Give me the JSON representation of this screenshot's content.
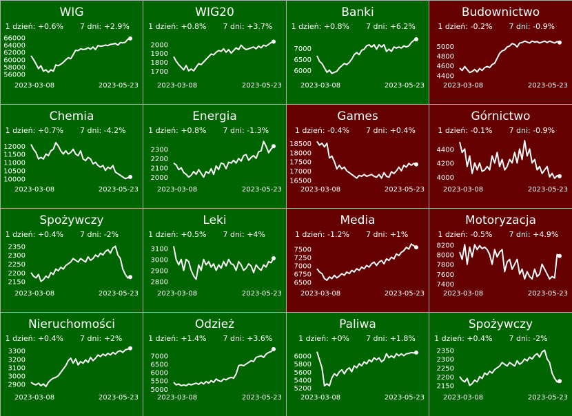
{
  "colors": {
    "up": "#006400",
    "down": "#640000",
    "line": "#ffffff",
    "border": "#b0b0b0"
  },
  "chart_data": [
    {
      "type": "line",
      "title": "WIG",
      "change_1d": "1 dzień: +0.6%",
      "change_7d": "7 dni: +2.9%",
      "trend": "up",
      "x_start": "2023-03-08",
      "x_end": "2023-05-23",
      "ylim": [
        55000,
        67000
      ],
      "yticks": [
        56000,
        58000,
        60000,
        62000,
        64000,
        66000
      ],
      "values": [
        61000,
        60000,
        58800,
        57500,
        58300,
        56800,
        57200,
        56500,
        57200,
        56800,
        58500,
        58300,
        58700,
        59200,
        59900,
        60500,
        60200,
        61300,
        62500,
        62400,
        62900,
        62700,
        62800,
        63200,
        62800,
        63400,
        62700,
        63800,
        63600,
        63700,
        63900,
        63800,
        64100,
        64200,
        64400,
        63900,
        64600,
        64500,
        64700,
        65500,
        65700
      ]
    },
    {
      "type": "line",
      "title": "WIG20",
      "change_1d": "1 dzień: +0.8%",
      "change_7d": "7 dni: +3.7%",
      "trend": "up",
      "x_start": "2023-03-08",
      "x_end": "2023-05-23",
      "ylim": [
        1620,
        2120
      ],
      "yticks": [
        1700,
        1800,
        1900,
        2000
      ],
      "values": [
        1860,
        1810,
        1770,
        1740,
        1710,
        1760,
        1700,
        1720,
        1700,
        1740,
        1780,
        1770,
        1800,
        1830,
        1860,
        1890,
        1880,
        1910,
        1930,
        1920,
        1950,
        1910,
        1940,
        1900,
        1930,
        1960,
        1940,
        1990,
        1960,
        1940,
        1950,
        1960,
        1970,
        1950,
        1980,
        1960,
        1990,
        1980,
        2000,
        2020,
        2030
      ]
    },
    {
      "type": "line",
      "title": "Banki",
      "change_1d": "1 dzień: +0.8%",
      "change_7d": "7 dni: +6.2%",
      "trend": "up",
      "x_start": "2023-03-08",
      "x_end": "2023-05-23",
      "ylim": [
        5650,
        7650
      ],
      "yticks": [
        6000,
        6500,
        7000
      ],
      "values": [
        6650,
        6400,
        6300,
        6100,
        5900,
        6000,
        5850,
        5900,
        5950,
        6100,
        6200,
        6300,
        6250,
        6350,
        6500,
        6700,
        6800,
        6700,
        6900,
        6950,
        7100,
        7150,
        7050,
        7150,
        6950,
        7150,
        7050,
        7150,
        6850,
        6950,
        6850,
        7050,
        7000,
        7050,
        7000,
        7100,
        7050,
        7100,
        7250,
        7350,
        7400
      ]
    },
    {
      "type": "line",
      "title": "Budownictwo",
      "change_1d": "1 dzień: -0.2%",
      "change_7d": "7 dni: -0.9%",
      "trend": "down",
      "x_start": "2023-03-08",
      "x_end": "2023-05-23",
      "ylim": [
        4350,
        5250
      ],
      "yticks": [
        4400,
        4600,
        4800,
        5000
      ],
      "values": [
        4550,
        4500,
        4580,
        4520,
        4460,
        4480,
        4520,
        4470,
        4540,
        4500,
        4560,
        4580,
        4560,
        4620,
        4650,
        4750,
        4850,
        4900,
        4920,
        4980,
        5000,
        5050,
        5030,
        4980,
        5060,
        5070,
        5100,
        5080,
        5060,
        5100,
        5080,
        5090,
        5060,
        5080,
        5100,
        5070,
        5100,
        5080,
        5060,
        5090,
        5070
      ]
    },
    {
      "type": "line",
      "title": "Chemia",
      "change_1d": "1 dzień: +0.7%",
      "change_7d": "7 dni: -4.2%",
      "trend": "up",
      "x_start": "2023-03-08",
      "x_end": "2023-05-23",
      "ylim": [
        9800,
        12500
      ],
      "yticks": [
        10000,
        10500,
        11000,
        11500,
        12000
      ],
      "values": [
        12100,
        11800,
        11600,
        11200,
        11300,
        11200,
        11500,
        11400,
        11700,
        11800,
        12200,
        12000,
        11700,
        11500,
        11700,
        11500,
        11600,
        11800,
        11500,
        11400,
        11700,
        11200,
        11100,
        11300,
        11200,
        10900,
        11000,
        10800,
        10700,
        10800,
        10500,
        10700,
        10600,
        10800,
        10400,
        10300,
        10200,
        10100,
        10000,
        10050,
        10100
      ]
    },
    {
      "type": "line",
      "title": "Energia",
      "change_1d": "1 dzień: +0.8%",
      "change_7d": "7 dni: -1.3%",
      "trend": "up",
      "x_start": "2023-03-08",
      "x_end": "2023-05-23",
      "ylim": [
        1950,
        2420
      ],
      "yticks": [
        2000,
        2100,
        2200,
        2300
      ],
      "values": [
        2150,
        2130,
        2080,
        2100,
        2050,
        2030,
        2000,
        2020,
        2060,
        2030,
        2080,
        2040,
        2000,
        2060,
        2040,
        2090,
        2030,
        2120,
        2080,
        2150,
        2140,
        2090,
        2160,
        2150,
        2180,
        2150,
        2200,
        2170,
        2230,
        2240,
        2180,
        2210,
        2230,
        2200,
        2270,
        2280,
        2380,
        2330,
        2260,
        2300,
        2330
      ]
    },
    {
      "type": "line",
      "title": "Games",
      "change_1d": "1 dzień: -0.4%",
      "change_7d": "7 dni: +0.4%",
      "trend": "down",
      "x_start": "2023-03-08",
      "x_end": "2023-05-23",
      "ylim": [
        16400,
        18800
      ],
      "yticks": [
        16500,
        17000,
        17500,
        18000,
        18500
      ],
      "values": [
        18600,
        18400,
        18500,
        18300,
        18500,
        17700,
        17800,
        17500,
        17100,
        17300,
        17100,
        17200,
        17000,
        16900,
        16800,
        16700,
        16600,
        16750,
        16700,
        16800,
        16700,
        16750,
        16800,
        16700,
        16650,
        16800,
        16600,
        16900,
        16700,
        16650,
        16950,
        16850,
        17000,
        17200,
        17000,
        17300,
        17200,
        17400,
        17300,
        17400,
        17350
      ]
    },
    {
      "type": "line",
      "title": "Górnictwo",
      "change_1d": "1 dzień: -0.1%",
      "change_7d": "7 dni: -0.9%",
      "trend": "down",
      "x_start": "2023-03-08",
      "x_end": "2023-05-23",
      "ylim": [
        3930,
        4560
      ],
      "yticks": [
        4000,
        4200,
        4400
      ],
      "values": [
        4500,
        4350,
        4400,
        4150,
        4300,
        4050,
        4200,
        4100,
        4200,
        4080,
        4100,
        4150,
        4100,
        4300,
        4200,
        4350,
        4150,
        4250,
        4100,
        4150,
        4250,
        4200,
        4350,
        4200,
        4400,
        4250,
        4520,
        4300,
        4400,
        4200,
        4250,
        4100,
        4150,
        4050,
        4100,
        4150,
        4000,
        4050,
        3980,
        4020,
        4010
      ]
    },
    {
      "type": "line",
      "title": "Spożywczy",
      "change_1d": "1 dzień: +0.4%",
      "change_7d": "7 dni: -2%",
      "trend": "up",
      "x_start": "2023-03-08",
      "x_end": "2023-05-23",
      "ylim": [
        2125,
        2375
      ],
      "yticks": [
        2150,
        2200,
        2250,
        2300,
        2350
      ],
      "values": [
        2200,
        2180,
        2170,
        2190,
        2150,
        2160,
        2180,
        2170,
        2200,
        2190,
        2220,
        2210,
        2230,
        2220,
        2240,
        2250,
        2260,
        2280,
        2270,
        2260,
        2280,
        2270,
        2260,
        2290,
        2270,
        2280,
        2300,
        2290,
        2310,
        2300,
        2320,
        2330,
        2310,
        2340,
        2350,
        2300,
        2280,
        2220,
        2190,
        2170,
        2175
      ]
    },
    {
      "type": "line",
      "title": "Leki",
      "change_1d": "1 dzień: +0.5%",
      "change_7d": "7 dni: +4%",
      "trend": "up",
      "x_start": "2023-03-08",
      "x_end": "2023-05-23",
      "ylim": [
        2760,
        3160
      ],
      "yticks": [
        2800,
        2900,
        3000,
        3100
      ],
      "values": [
        3120,
        3000,
        2950,
        3000,
        2900,
        3000,
        2980,
        2900,
        2850,
        2820,
        2950,
        2900,
        3000,
        2950,
        2980,
        2930,
        2960,
        2900,
        2950,
        2920,
        2980,
        2940,
        3000,
        2960,
        2950,
        2900,
        2980,
        2950,
        2900,
        2920,
        2960,
        2940,
        2880,
        2950,
        2920,
        2900,
        2950,
        2930,
        2980,
        2970,
        3010
      ]
    },
    {
      "type": "line",
      "title": "Media",
      "change_1d": "1 dzień: -1.2%",
      "change_7d": "7 dni: +1%",
      "trend": "down",
      "x_start": "2023-03-08",
      "x_end": "2023-05-23",
      "ylim": [
        6380,
        7720
      ],
      "yticks": [
        6500,
        6750,
        7000,
        7250,
        7500
      ],
      "values": [
        6900,
        6800,
        6750,
        6600,
        6550,
        6650,
        6600,
        6700,
        6620,
        6680,
        6750,
        6700,
        6800,
        6750,
        6850,
        6800,
        6900,
        6850,
        6950,
        6900,
        7000,
        6950,
        7050,
        7100,
        7000,
        7100,
        7150,
        7050,
        7200,
        7150,
        7250,
        7200,
        7350,
        7300,
        7400,
        7450,
        7550,
        7500,
        7650,
        7600,
        7550
      ]
    },
    {
      "type": "line",
      "title": "Motoryzacja",
      "change_1d": "1 dzień: -0.5%",
      "change_7d": "7 dni: +4.9%",
      "trend": "down",
      "x_start": "2023-03-08",
      "x_end": "2023-05-23",
      "ylim": [
        7360,
        8260
      ],
      "yticks": [
        7400,
        7600,
        7800,
        8000,
        8200
      ],
      "values": [
        8050,
        7900,
        8200,
        7800,
        8150,
        7950,
        8200,
        8100,
        8180,
        8120,
        8150,
        8100,
        8000,
        7800,
        8100,
        7950,
        8050,
        8100,
        7650,
        7850,
        7900,
        7700,
        7800,
        7900,
        7600,
        7700,
        7500,
        7650,
        7550,
        7500,
        7700,
        7550,
        7600,
        7800,
        7700,
        7600,
        7500,
        7550,
        7520,
        8000,
        7970
      ]
    },
    {
      "type": "line",
      "title": "Nieruchomości",
      "change_1d": "1 dzień: +0.4%",
      "change_7d": "7 dni: +2%",
      "trend": "up",
      "x_start": "2023-03-08",
      "x_end": "2023-05-23",
      "ylim": [
        2830,
        3360
      ],
      "yticks": [
        2900,
        3000,
        3100,
        3200,
        3300
      ],
      "values": [
        2920,
        2900,
        2890,
        2910,
        2880,
        2900,
        2870,
        2920,
        2950,
        2970,
        2980,
        3000,
        3040,
        3080,
        3120,
        3180,
        3210,
        3150,
        3200,
        3130,
        3170,
        3150,
        3190,
        3160,
        3220,
        3180,
        3210,
        3250,
        3230,
        3260,
        3240,
        3270,
        3250,
        3280,
        3260,
        3290,
        3300,
        3280,
        3310,
        3320,
        3330
      ]
    },
    {
      "type": "line",
      "title": "Odzież",
      "change_1d": "1 dzień: +1.4%",
      "change_7d": "7 dni: +3.6%",
      "trend": "up",
      "x_start": "2023-03-08",
      "x_end": "2023-05-23",
      "ylim": [
        4950,
        7600
      ],
      "yticks": [
        5000,
        5500,
        6000,
        6500,
        7000
      ],
      "values": [
        5400,
        5250,
        5300,
        5200,
        5250,
        5200,
        5300,
        5250,
        5300,
        5350,
        5280,
        5400,
        5300,
        5450,
        5350,
        5500,
        5400,
        5600,
        5500,
        5450,
        5600,
        5550,
        5650,
        5700,
        5650,
        5900,
        6400,
        6450,
        6400,
        6500,
        6600,
        6700,
        6650,
        6900,
        6950,
        7000,
        6900,
        7100,
        7200,
        7250,
        7400
      ]
    },
    {
      "type": "line",
      "title": "Paliwa",
      "change_1d": "1 dzień: +0%",
      "change_7d": "7 dni: +1.8%",
      "trend": "up",
      "x_start": "2023-03-08",
      "x_end": "2023-05-23",
      "ylim": [
        5150,
        6250
      ],
      "yticks": [
        5200,
        5400,
        5600,
        5800,
        6000
      ],
      "values": [
        6100,
        5900,
        5700,
        5250,
        5300,
        5250,
        5450,
        5550,
        5500,
        5600,
        5650,
        5550,
        5650,
        5700,
        5600,
        5750,
        5700,
        5800,
        5750,
        5850,
        5800,
        5900,
        5850,
        5950,
        5900,
        5950,
        5850,
        5900,
        6050,
        5950,
        6000,
        5950,
        6050,
        6000,
        6050,
        6000,
        6050,
        6060,
        6080,
        6070,
        6080
      ]
    },
    {
      "type": "line",
      "title": "Spożywczy",
      "change_1d": "1 dzień: +0.4%",
      "change_7d": "7 dni: -2%",
      "trend": "up",
      "x_start": "2023-03-08",
      "x_end": "2023-05-23",
      "ylim": [
        2125,
        2375
      ],
      "yticks": [
        2150,
        2200,
        2250,
        2300,
        2350
      ],
      "values": [
        2200,
        2180,
        2170,
        2190,
        2150,
        2160,
        2180,
        2170,
        2200,
        2190,
        2220,
        2210,
        2230,
        2220,
        2240,
        2250,
        2260,
        2280,
        2270,
        2260,
        2280,
        2270,
        2260,
        2290,
        2270,
        2280,
        2300,
        2290,
        2310,
        2300,
        2320,
        2330,
        2310,
        2340,
        2350,
        2300,
        2280,
        2220,
        2190,
        2170,
        2175
      ]
    }
  ]
}
